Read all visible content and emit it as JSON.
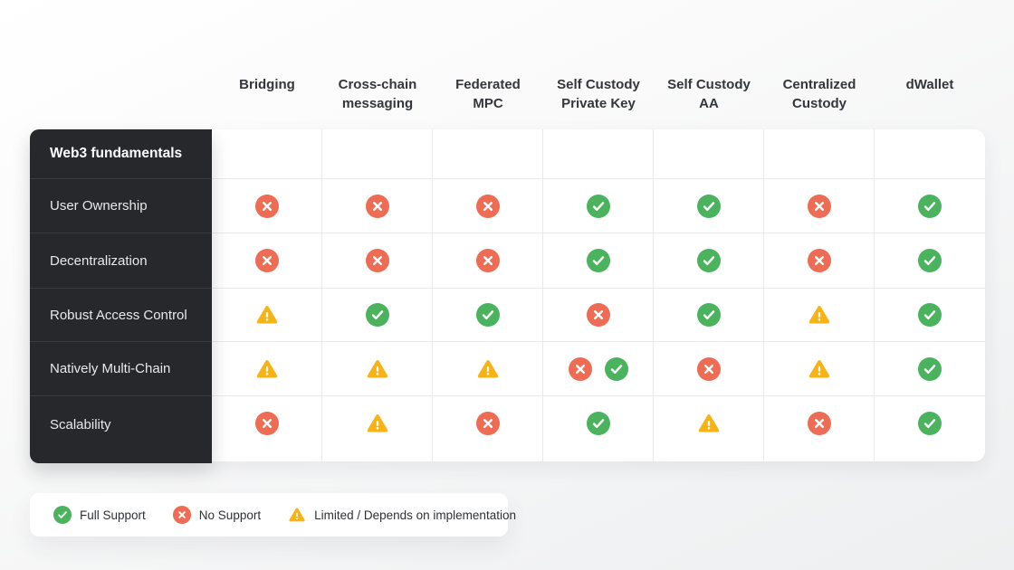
{
  "chart_data": {
    "type": "table",
    "row_group_title": "Web3 fundamentals",
    "columns": [
      "Bridging",
      "Cross-chain messaging",
      "Federated MPC",
      "Self Custody Private Key",
      "Self Custody AA",
      "Centralized Custody",
      "dWallet"
    ],
    "rows": [
      {
        "label": "User Ownership",
        "cells": [
          [
            "no"
          ],
          [
            "no"
          ],
          [
            "no"
          ],
          [
            "yes"
          ],
          [
            "yes"
          ],
          [
            "no"
          ],
          [
            "yes"
          ]
        ]
      },
      {
        "label": "Decentralization",
        "cells": [
          [
            "no"
          ],
          [
            "no"
          ],
          [
            "no"
          ],
          [
            "yes"
          ],
          [
            "yes"
          ],
          [
            "no"
          ],
          [
            "yes"
          ]
        ]
      },
      {
        "label": "Robust Access Control",
        "cells": [
          [
            "limited"
          ],
          [
            "yes"
          ],
          [
            "yes"
          ],
          [
            "no"
          ],
          [
            "yes"
          ],
          [
            "limited"
          ],
          [
            "yes"
          ]
        ]
      },
      {
        "label": "Natively Multi-Chain",
        "cells": [
          [
            "limited"
          ],
          [
            "limited"
          ],
          [
            "limited"
          ],
          [
            "no",
            "yes"
          ],
          [
            "no"
          ],
          [
            "limited"
          ],
          [
            "yes"
          ]
        ]
      },
      {
        "label": "Scalability",
        "cells": [
          [
            "no"
          ],
          [
            "limited"
          ],
          [
            "no"
          ],
          [
            "yes"
          ],
          [
            "limited"
          ],
          [
            "no"
          ],
          [
            "yes"
          ]
        ]
      }
    ],
    "legend": [
      {
        "icon": "yes",
        "label": "Full Support"
      },
      {
        "icon": "no",
        "label": "No Support"
      },
      {
        "icon": "limited",
        "label": "Limited / Depends on implementation"
      }
    ]
  },
  "colors": {
    "full_support": "#4bb35d",
    "no_support": "#ee6c53",
    "limited": "#f7b216",
    "sidebar_bg": "#26282c"
  }
}
